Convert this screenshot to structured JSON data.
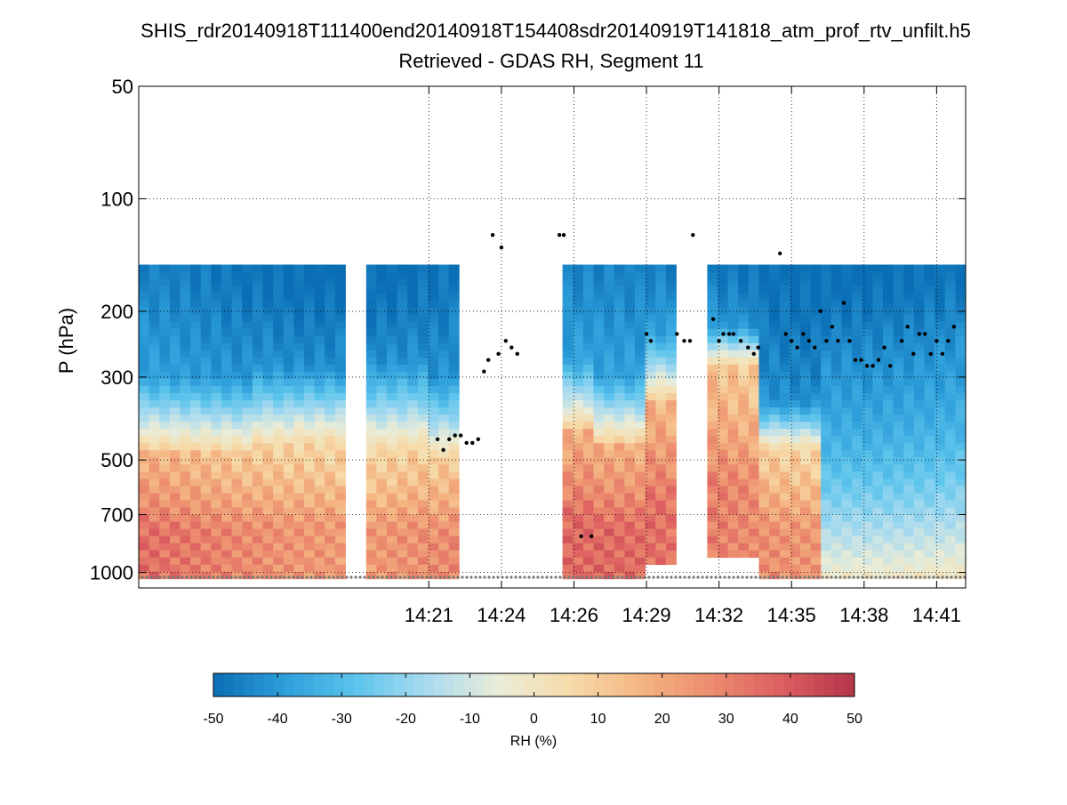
{
  "chart_data": {
    "type": "heatmap",
    "title": "SHIS_rdr20140918T111400end20140918T154408sdr20140919T141818_atm_prof_rtv_unfilt.h5",
    "subtitle": "Retrieved - GDAS RH, Segment 11",
    "xlabel": "",
    "ylabel": "P (hPa)",
    "y_scale": "log",
    "y_reversed": true,
    "ylim": [
      50,
      1100
    ],
    "xlim_minutes": [
      14.15,
      14.72
    ],
    "yticks": [
      50,
      100,
      200,
      300,
      500,
      700,
      1000
    ],
    "ytick_labels": [
      "50",
      "100",
      "200",
      "300",
      "500",
      "700",
      "1000"
    ],
    "xticks": [
      14.35,
      14.4,
      14.45,
      14.5,
      14.55,
      14.6,
      14.65,
      14.7
    ],
    "xtick_labels": [
      "14:21",
      "14:24",
      "14:26",
      "14:29",
      "14:32",
      "14:35",
      "14:38",
      "14:41"
    ],
    "grid": true,
    "colorbar": {
      "label": "RH (%)",
      "min": -50,
      "max": 50,
      "ticks": [
        -50,
        -40,
        -30,
        -20,
        -10,
        0,
        10,
        20,
        30,
        40,
        50
      ],
      "tick_labels": [
        "-50",
        "-40",
        "-30",
        "-20",
        "-10",
        "0",
        "10",
        "20",
        "30",
        "40",
        "50"
      ],
      "colormap": [
        "#0a6eb4",
        "#2e9fdb",
        "#5cc4ec",
        "#a9dbef",
        "#e9ecd8",
        "#f6dcaa",
        "#f4b582",
        "#ec8c6e",
        "#dc5e60",
        "#b33549"
      ]
    },
    "approx_profile_segments": [
      {
        "t_start": 14.15,
        "t_end": 14.23,
        "top_hpa": 150,
        "dry_to_hpa": 300,
        "moist_below_hpa": 480
      },
      {
        "t_start": 14.23,
        "t_end": 14.26,
        "top_hpa": 150,
        "dry_to_hpa": 280,
        "moist_below_hpa": 460
      },
      {
        "t_start": 14.26,
        "t_end": 14.29,
        "top_hpa": 150,
        "dry_to_hpa": 280,
        "moist_below_hpa": 450
      },
      {
        "t_start": 14.31,
        "t_end": 14.35,
        "top_hpa": 150,
        "dry_to_hpa": 270,
        "moist_below_hpa": 470
      },
      {
        "t_start": 14.35,
        "t_end": 14.37,
        "top_hpa": 150,
        "dry_to_hpa": 300,
        "moist_below_hpa": 500
      },
      {
        "t_start": 14.44,
        "t_end": 14.46,
        "top_hpa": 150,
        "dry_to_hpa": 270,
        "moist_below_hpa": 420
      },
      {
        "t_start": 14.46,
        "t_end": 14.5,
        "top_hpa": 150,
        "dry_to_hpa": 300,
        "moist_below_hpa": 460
      },
      {
        "t_start": 14.5,
        "t_end": 14.52,
        "top_hpa": 150,
        "dry_to_hpa": 230,
        "moist_below_hpa": 350
      },
      {
        "t_start": 14.54,
        "t_end": 14.58,
        "top_hpa": 150,
        "dry_to_hpa": 220,
        "moist_below_hpa": 280
      },
      {
        "t_start": 14.58,
        "t_end": 14.62,
        "top_hpa": 150,
        "dry_to_hpa": 350,
        "moist_below_hpa": 470
      },
      {
        "t_start": 14.62,
        "t_end": 14.72,
        "top_hpa": 150,
        "dry_to_hpa": 260,
        "moist_below_hpa": 1200
      }
    ],
    "cloud_top_markers": [
      {
        "t": 14.356,
        "p": 440
      },
      {
        "t": 14.36,
        "p": 470
      },
      {
        "t": 14.364,
        "p": 440
      },
      {
        "t": 14.368,
        "p": 430
      },
      {
        "t": 14.372,
        "p": 430
      },
      {
        "t": 14.376,
        "p": 450
      },
      {
        "t": 14.38,
        "p": 450
      },
      {
        "t": 14.384,
        "p": 440
      },
      {
        "t": 14.388,
        "p": 290
      },
      {
        "t": 14.391,
        "p": 270
      },
      {
        "t": 14.394,
        "p": 125
      },
      {
        "t": 14.398,
        "p": 260
      },
      {
        "t": 14.4,
        "p": 135
      },
      {
        "t": 14.403,
        "p": 240
      },
      {
        "t": 14.407,
        "p": 250
      },
      {
        "t": 14.411,
        "p": 260
      },
      {
        "t": 14.44,
        "p": 125
      },
      {
        "t": 14.443,
        "p": 125
      },
      {
        "t": 14.455,
        "p": 800
      },
      {
        "t": 14.462,
        "p": 800
      },
      {
        "t": 14.5,
        "p": 230
      },
      {
        "t": 14.503,
        "p": 240
      },
      {
        "t": 14.521,
        "p": 230
      },
      {
        "t": 14.526,
        "p": 240
      },
      {
        "t": 14.53,
        "p": 240
      },
      {
        "t": 14.532,
        "p": 125
      },
      {
        "t": 14.546,
        "p": 210
      },
      {
        "t": 14.55,
        "p": 240
      },
      {
        "t": 14.553,
        "p": 230
      },
      {
        "t": 14.557,
        "p": 230
      },
      {
        "t": 14.56,
        "p": 230
      },
      {
        "t": 14.565,
        "p": 240
      },
      {
        "t": 14.57,
        "p": 250
      },
      {
        "t": 14.574,
        "p": 260
      },
      {
        "t": 14.577,
        "p": 250
      },
      {
        "t": 14.592,
        "p": 140
      },
      {
        "t": 14.596,
        "p": 230
      },
      {
        "t": 14.6,
        "p": 240
      },
      {
        "t": 14.604,
        "p": 250
      },
      {
        "t": 14.608,
        "p": 230
      },
      {
        "t": 14.612,
        "p": 240
      },
      {
        "t": 14.616,
        "p": 250
      },
      {
        "t": 14.62,
        "p": 200
      },
      {
        "t": 14.624,
        "p": 240
      },
      {
        "t": 14.628,
        "p": 220
      },
      {
        "t": 14.632,
        "p": 240
      },
      {
        "t": 14.636,
        "p": 190
      },
      {
        "t": 14.64,
        "p": 240
      },
      {
        "t": 14.644,
        "p": 270
      },
      {
        "t": 14.648,
        "p": 270
      },
      {
        "t": 14.652,
        "p": 280
      },
      {
        "t": 14.656,
        "p": 280
      },
      {
        "t": 14.66,
        "p": 270
      },
      {
        "t": 14.664,
        "p": 250
      },
      {
        "t": 14.668,
        "p": 280
      },
      {
        "t": 14.676,
        "p": 240
      },
      {
        "t": 14.68,
        "p": 220
      },
      {
        "t": 14.684,
        "p": 260
      },
      {
        "t": 14.688,
        "p": 230
      },
      {
        "t": 14.692,
        "p": 230
      },
      {
        "t": 14.696,
        "p": 260
      },
      {
        "t": 14.7,
        "p": 240
      },
      {
        "t": 14.704,
        "p": 260
      },
      {
        "t": 14.708,
        "p": 240
      },
      {
        "t": 14.712,
        "p": 220
      }
    ],
    "surface_markers_hpa": 1030
  }
}
